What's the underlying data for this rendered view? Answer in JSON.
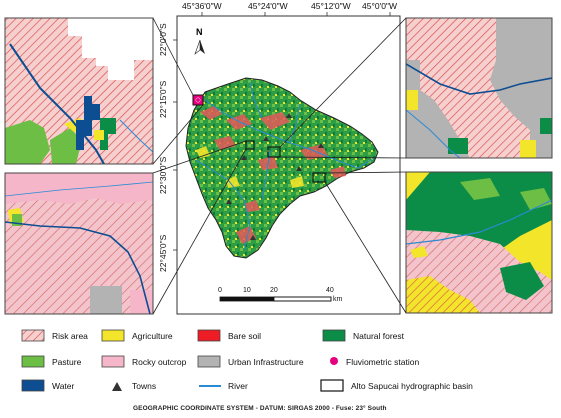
{
  "map": {
    "coords_top": [
      "45°36'0\"W",
      "45°24'0\"W",
      "45°12'0\"W",
      "45°0'0\"W"
    ],
    "coords_left": [
      "22°0'0\"S",
      "22°15'0\"S",
      "22°30'0\"S",
      "22°45'0\"S"
    ],
    "north_label": "N",
    "scale": {
      "ticks": [
        "0",
        "10",
        "20",
        "40"
      ],
      "unit": "km"
    }
  },
  "legend": {
    "items": [
      {
        "key": "risk",
        "label": "Risk area",
        "color": "#e89a9a"
      },
      {
        "key": "agriculture",
        "label": "Agriculture",
        "color": "#f2e52a"
      },
      {
        "key": "bare",
        "label": "Bare soil",
        "color": "#ee1c24"
      },
      {
        "key": "forest",
        "label": "Natural forest",
        "color": "#0b8d47"
      },
      {
        "key": "pasture",
        "label": "Pasture",
        "color": "#6cbe45"
      },
      {
        "key": "rocky",
        "label": "Rocky outcrop",
        "color": "#f4b6c8"
      },
      {
        "key": "urban",
        "label": "Urban Infrastructure",
        "color": "#b3b3b3"
      },
      {
        "key": "station",
        "label": "Fluviometric station",
        "color": "#e6007e"
      },
      {
        "key": "water",
        "label": "Water",
        "color": "#0d4d92"
      },
      {
        "key": "towns",
        "label": "Towns",
        "color": "#333333"
      },
      {
        "key": "river",
        "label": "River",
        "color": "#2a8ad4"
      },
      {
        "key": "basin",
        "label": "Alto Sapucai hydrographic basin",
        "color": "#000000"
      }
    ]
  },
  "footer": "GEOGRAPHIC COORDINATE SYSTEM - DATUM: SIRGAS 2000 - Fuse: 23° South"
}
